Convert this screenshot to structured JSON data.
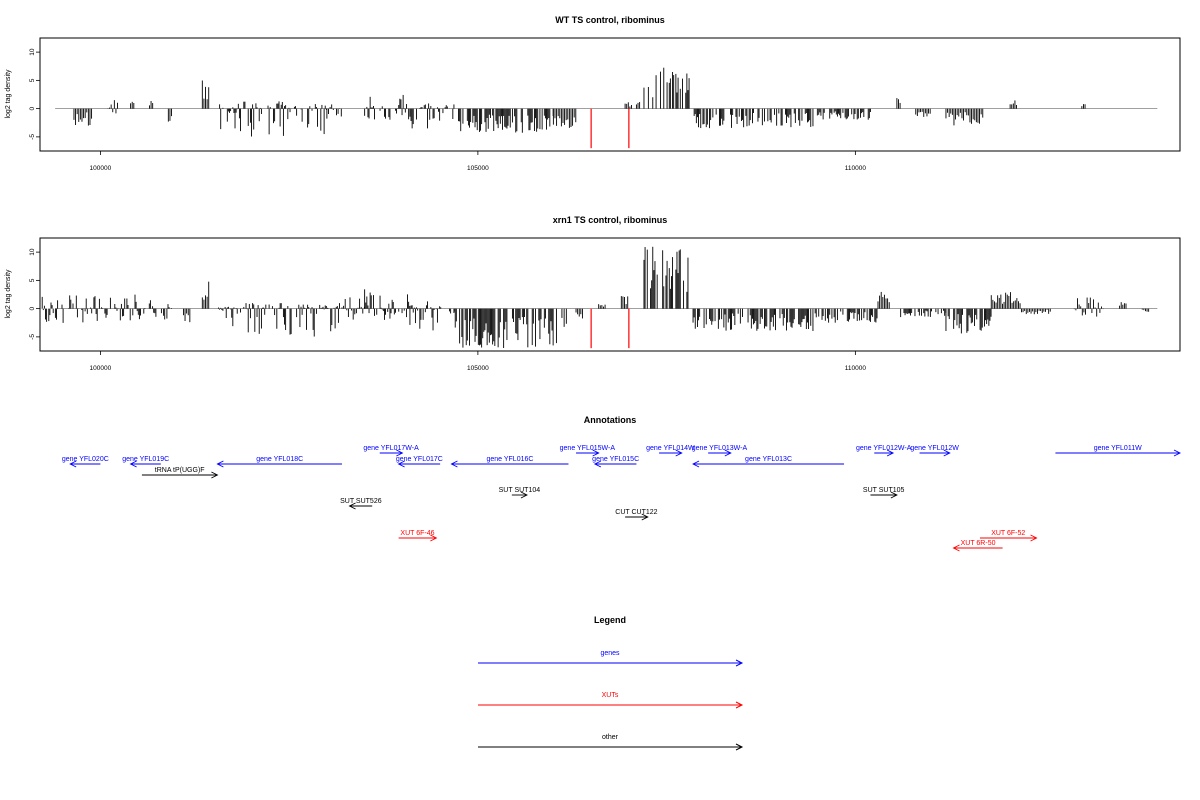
{
  "chart_data": [
    {
      "type": "bar",
      "title": "WT TS control, ribominus",
      "ylabel": "log2 tag density",
      "xlabel": "",
      "xlim": [
        99200,
        114300
      ],
      "ylim": [
        -7.5,
        12.5
      ],
      "yticks": [
        -5,
        0,
        5,
        10
      ],
      "xticks": [
        100000,
        105000,
        110000
      ],
      "grid": false,
      "markers": {
        "color": "#ff0000",
        "x": [
          106500,
          107000
        ],
        "y": -7
      },
      "segments": [
        {
          "x0": 99650,
          "x1": 99900,
          "min": -3,
          "max": 0,
          "seed": 1
        },
        {
          "x0": 100100,
          "x1": 100250,
          "min": -1,
          "max": 1.5,
          "seed": 2
        },
        {
          "x0": 100400,
          "x1": 100450,
          "min": 0,
          "max": 2,
          "seed": 3
        },
        {
          "x0": 100650,
          "x1": 100700,
          "min": 0,
          "max": 1.8,
          "seed": 4
        },
        {
          "x0": 100900,
          "x1": 100950,
          "min": -2.5,
          "max": 0,
          "seed": 5
        },
        {
          "x0": 101350,
          "x1": 101450,
          "min": 0,
          "max": 6,
          "seed": 6
        },
        {
          "x0": 101550,
          "x1": 103000,
          "min": -5,
          "max": 1.5,
          "seed": 7
        },
        {
          "x0": 103000,
          "x1": 103200,
          "min": -2,
          "max": 1,
          "seed": 8
        },
        {
          "x0": 103500,
          "x1": 104100,
          "min": -2,
          "max": 2.5,
          "seed": 9
        },
        {
          "x0": 104100,
          "x1": 104700,
          "min": -3.5,
          "max": 1,
          "seed": 10
        },
        {
          "x0": 104700,
          "x1": 106000,
          "min": -4.5,
          "max": 0,
          "seed": 11
        },
        {
          "x0": 106000,
          "x1": 106300,
          "min": -3.5,
          "max": 0,
          "seed": 12
        },
        {
          "x0": 106950,
          "x1": 107050,
          "min": 0,
          "max": 1.2,
          "seed": 13
        },
        {
          "x0": 107100,
          "x1": 107150,
          "min": 0,
          "max": 1.2,
          "seed": 14
        },
        {
          "x0": 107200,
          "x1": 107800,
          "min": 0,
          "max": 7.5,
          "seed": 15
        },
        {
          "x0": 107850,
          "x1": 109500,
          "min": -3.5,
          "max": 0,
          "seed": 16
        },
        {
          "x0": 109500,
          "x1": 110200,
          "min": -2,
          "max": 0,
          "seed": 17
        },
        {
          "x0": 110550,
          "x1": 110600,
          "min": 0,
          "max": 2.2,
          "seed": 18
        },
        {
          "x0": 110800,
          "x1": 111000,
          "min": -1.5,
          "max": 0,
          "seed": 19
        },
        {
          "x0": 111200,
          "x1": 111700,
          "min": -3,
          "max": 0,
          "seed": 20
        },
        {
          "x0": 112050,
          "x1": 112150,
          "min": 0,
          "max": 1.5,
          "seed": 21
        },
        {
          "x0": 113000,
          "x1": 113050,
          "min": 0,
          "max": 1.2,
          "seed": 22
        }
      ]
    },
    {
      "type": "bar",
      "title": "xrn1 TS control, ribominus",
      "ylabel": "log2 tag density",
      "xlabel": "",
      "xlim": [
        99200,
        114300
      ],
      "ylim": [
        -7.5,
        12.5
      ],
      "yticks": [
        -5,
        0,
        5,
        10
      ],
      "xticks": [
        100000,
        105000,
        110000
      ],
      "grid": false,
      "markers": {
        "color": "#ff0000",
        "x": [
          106500,
          107000
        ],
        "y": -7
      },
      "segments": [
        {
          "x0": 99200,
          "x1": 100400,
          "min": -3,
          "max": 2.5,
          "seed": 31
        },
        {
          "x0": 100400,
          "x1": 100950,
          "min": -2,
          "max": 2.5,
          "seed": 32
        },
        {
          "x0": 101100,
          "x1": 101200,
          "min": -2.5,
          "max": 0,
          "seed": 33
        },
        {
          "x0": 101350,
          "x1": 101450,
          "min": 0,
          "max": 5,
          "seed": 34
        },
        {
          "x0": 101550,
          "x1": 103200,
          "min": -5,
          "max": 1,
          "seed": 35
        },
        {
          "x0": 103200,
          "x1": 103500,
          "min": -2,
          "max": 2,
          "seed": 36
        },
        {
          "x0": 103500,
          "x1": 104100,
          "min": -2,
          "max": 3.5,
          "seed": 37
        },
        {
          "x0": 104100,
          "x1": 104700,
          "min": -4,
          "max": 1.5,
          "seed": 38
        },
        {
          "x0": 104700,
          "x1": 106200,
          "min": -7,
          "max": 0,
          "seed": 39
        },
        {
          "x0": 106300,
          "x1": 106400,
          "min": -2,
          "max": 0,
          "seed": 40
        },
        {
          "x0": 106600,
          "x1": 106700,
          "min": 0,
          "max": 0.8,
          "seed": 41
        },
        {
          "x0": 106900,
          "x1": 107000,
          "min": 0,
          "max": 2.5,
          "seed": 42
        },
        {
          "x0": 107200,
          "x1": 107800,
          "min": 0,
          "max": 11,
          "seed": 43
        },
        {
          "x0": 107850,
          "x1": 109500,
          "min": -4,
          "max": 0,
          "seed": 44
        },
        {
          "x0": 109500,
          "x1": 110300,
          "min": -2.5,
          "max": 0,
          "seed": 45
        },
        {
          "x0": 110300,
          "x1": 110450,
          "min": 0,
          "max": 3,
          "seed": 46
        },
        {
          "x0": 110600,
          "x1": 111200,
          "min": -1.5,
          "max": 0,
          "seed": 47
        },
        {
          "x0": 111200,
          "x1": 111800,
          "min": -4.5,
          "max": 0,
          "seed": 48
        },
        {
          "x0": 111800,
          "x1": 112200,
          "min": 0,
          "max": 3,
          "seed": 49
        },
        {
          "x0": 112200,
          "x1": 112600,
          "min": -1,
          "max": 0,
          "seed": 50
        },
        {
          "x0": 112900,
          "x1": 113300,
          "min": -1.5,
          "max": 2,
          "seed": 51
        },
        {
          "x0": 113500,
          "x1": 113600,
          "min": 0,
          "max": 1.2,
          "seed": 52
        },
        {
          "x0": 113800,
          "x1": 113900,
          "min": -0.8,
          "max": 0,
          "seed": 53
        }
      ]
    },
    {
      "type": "other",
      "title": "Annotations",
      "xlim": [
        99200,
        114300
      ],
      "features": [
        {
          "label": "gene YFL020C",
          "kind": "gene",
          "strand": "-",
          "start": 99600,
          "end": 100000,
          "row": 0
        },
        {
          "label": "gene YFL019C",
          "kind": "gene",
          "strand": "-",
          "start": 100400,
          "end": 100800,
          "row": 0
        },
        {
          "label": "tRNA tP(UGG)F",
          "kind": "other",
          "strand": "+",
          "start": 100550,
          "end": 101550,
          "row": 1
        },
        {
          "label": "gene YFL018C",
          "kind": "gene",
          "strand": "-",
          "start": 101550,
          "end": 103200,
          "row": 0
        },
        {
          "label": "gene YFL017W-A",
          "kind": "gene",
          "strand": "+",
          "start": 103700,
          "end": 104000,
          "row": -1
        },
        {
          "label": "gene YFL017C",
          "kind": "gene",
          "strand": "-",
          "start": 103950,
          "end": 104500,
          "row": 0
        },
        {
          "label": "SUT SUT526",
          "kind": "other",
          "strand": "-",
          "start": 103300,
          "end": 103600,
          "row": 3
        },
        {
          "label": "XUT 6F-46",
          "kind": "xut",
          "strand": "+",
          "start": 103950,
          "end": 104450,
          "row": 5
        },
        {
          "label": "gene YFL016C",
          "kind": "gene",
          "strand": "-",
          "start": 104650,
          "end": 106200,
          "row": 0
        },
        {
          "label": "SUT SUT104",
          "kind": "other",
          "strand": "+",
          "start": 105450,
          "end": 105650,
          "row": 2
        },
        {
          "label": "gene YFL015W-A",
          "kind": "gene",
          "strand": "+",
          "start": 106300,
          "end": 106600,
          "row": -1
        },
        {
          "label": "gene YFL015C",
          "kind": "gene",
          "strand": "-",
          "start": 106550,
          "end": 107100,
          "row": 0
        },
        {
          "label": "CUT CUT122",
          "kind": "other",
          "strand": "+",
          "start": 106950,
          "end": 107250,
          "row": 4
        },
        {
          "label": "gene YFL014W",
          "kind": "gene",
          "strand": "+",
          "start": 107400,
          "end": 107700,
          "row": -1
        },
        {
          "label": "gene YFL013W-A",
          "kind": "gene",
          "strand": "+",
          "start": 108050,
          "end": 108350,
          "row": -1
        },
        {
          "label": "gene YFL013C",
          "kind": "gene",
          "strand": "-",
          "start": 107850,
          "end": 109850,
          "row": 0
        },
        {
          "label": "gene YFL012W-A",
          "kind": "gene",
          "strand": "+",
          "start": 110250,
          "end": 110500,
          "row": -1
        },
        {
          "label": "gene YFL012W",
          "kind": "gene",
          "strand": "+",
          "start": 110850,
          "end": 111250,
          "row": -1
        },
        {
          "label": "SUT SUT105",
          "kind": "other",
          "strand": "+",
          "start": 110200,
          "end": 110550,
          "row": 2
        },
        {
          "label": "XUT 6F-52",
          "kind": "xut",
          "strand": "+",
          "start": 111650,
          "end": 112400,
          "row": 5
        },
        {
          "label": "XUT 6R-50",
          "kind": "xut",
          "strand": "-",
          "start": 111300,
          "end": 111950,
          "row": 6
        },
        {
          "label": "gene YFL011W",
          "kind": "gene",
          "strand": "+",
          "start": 112650,
          "end": 114300,
          "row": -1
        }
      ]
    },
    {
      "type": "legend",
      "title": "Legend",
      "entries": [
        {
          "label": "genes",
          "color": "#0000ff"
        },
        {
          "label": "XUTs",
          "color": "#ff0000"
        },
        {
          "label": "other",
          "color": "#000000"
        }
      ]
    }
  ],
  "colors": {
    "gene": "#0000ff",
    "xut": "#ff0000",
    "other": "#000000",
    "baseline": "#808080"
  }
}
